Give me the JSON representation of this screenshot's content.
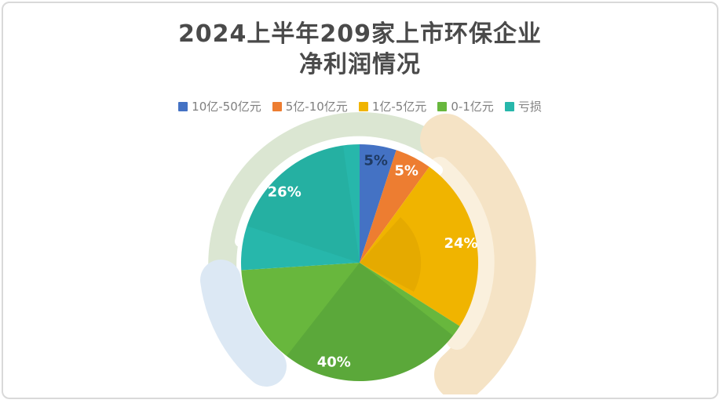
{
  "card": {
    "background": "#ffffff",
    "border_color": "#d9d9d9"
  },
  "title": {
    "line1": "2024上半年209家上市环保企业",
    "line2": "净利润情况",
    "color": "#4a4a4a"
  },
  "legend": {
    "text_color": "#7f7f7f",
    "position": "top-center"
  },
  "chart_data": {
    "type": "pie",
    "title": "2024上半年209家上市环保企业净利润情况",
    "categories": [
      "10亿-50亿元",
      "5亿-10亿元",
      "1亿-5亿元",
      "0-1亿元",
      "亏损"
    ],
    "values": [
      5,
      5,
      24,
      40,
      26
    ],
    "labels": [
      "5%",
      "5%",
      "24%",
      "40%",
      "26%"
    ],
    "colors": [
      "#4472c4",
      "#ed7d31",
      "#f0b400",
      "#68b73d",
      "#27b7ab"
    ],
    "label_colors": [
      "#1f3a63",
      "#ffffff",
      "#ffffff",
      "#ffffff",
      "#ffffff"
    ],
    "start_angle_deg": 0,
    "direction": "clockwise",
    "unit": "percent",
    "legend_position": "top"
  },
  "decor": {
    "sage": "#dbe6d2",
    "tan": "#f5e3c5",
    "tan_light": "#faf0dd",
    "blue": "#dce8f4",
    "white_gap": "#ffffff"
  }
}
